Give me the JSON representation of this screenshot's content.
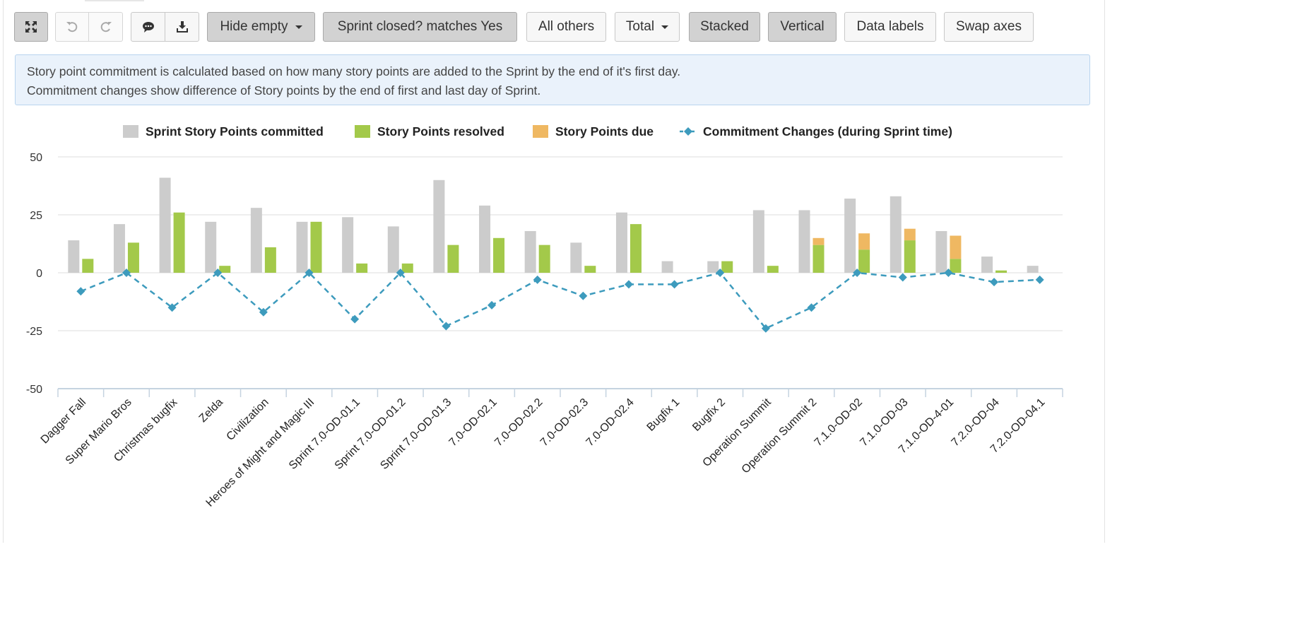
{
  "toolbar": {
    "expand_icon": "expand-icon",
    "undo_icon": "undo-icon",
    "redo_icon": "redo-icon",
    "comment_icon": "comment-icon",
    "download_icon": "download-icon",
    "hide_empty": "Hide empty",
    "filter": "Sprint closed? matches Yes",
    "all_others": "All others",
    "total": "Total",
    "stacked": "Stacked",
    "vertical": "Vertical",
    "data_labels": "Data labels",
    "swap_axes": "Swap axes"
  },
  "info": {
    "line1": "Story point commitment is calculated based on how many story points are added to the Sprint by the end of it's first day.",
    "line2": "Commitment changes show difference of Story points by the end of first and last day of Sprint."
  },
  "chart_data": {
    "type": "bar",
    "categories": [
      "Dagger Fall",
      "Super Mario Bros",
      "Christmas bugfix",
      "Zelda",
      "Civilization",
      "Heroes of Might and Magic III",
      "Sprint 7.0-OD-01.1",
      "Sprint 7.0-OD-01.2",
      "Sprint 7.0-OD-01.3",
      "7.0-OD-02.1",
      "7.0-OD-02.2",
      "7.0-OD-02.3",
      "7.0-OD-02.4",
      "Bugfix 1",
      "Bugfix 2",
      "Operation Summit",
      "Operation Summit 2",
      "7.1.0-OD-02",
      "7.1.0-OD-03",
      "7.1.0-OD-4-01",
      "7.2.0-OD-04",
      "7.2.0-OD-04.1"
    ],
    "series": [
      {
        "name": "Sprint Story Points committed",
        "kind": "bar",
        "color": "#cccccc",
        "values": [
          14,
          21,
          41,
          22,
          28,
          22,
          24,
          20,
          40,
          29,
          18,
          13,
          26,
          5,
          5,
          27,
          27,
          32,
          33,
          18,
          7,
          3
        ]
      },
      {
        "name": "Story Points resolved",
        "kind": "bar",
        "color": "#a3c94a",
        "stack": "progress",
        "values": [
          6,
          13,
          26,
          3,
          11,
          22,
          4,
          4,
          12,
          15,
          12,
          3,
          21,
          0,
          5,
          3,
          12,
          10,
          14,
          6,
          1,
          0
        ]
      },
      {
        "name": "Story Points due",
        "kind": "bar",
        "color": "#efb862",
        "stack": "progress",
        "values": [
          0,
          0,
          0,
          0,
          0,
          0,
          0,
          0,
          0,
          0,
          0,
          0,
          0,
          0,
          0,
          0,
          3,
          7,
          5,
          10,
          0,
          0
        ]
      },
      {
        "name": "Commitment Changes (during Sprint time)",
        "kind": "line",
        "color": "#3d9bbd",
        "values": [
          -8,
          0,
          -15,
          0,
          -17,
          0,
          -20,
          0,
          -23,
          -14,
          -3,
          -10,
          -5,
          -5,
          0,
          -24,
          -15,
          0,
          -2,
          0,
          -4,
          -3
        ]
      }
    ],
    "ylim": [
      -50,
      50
    ],
    "yticks": [
      50,
      25,
      0,
      -25,
      -50
    ],
    "grid": true,
    "legend": "top-center",
    "stacked": true,
    "orientation": "vertical"
  }
}
